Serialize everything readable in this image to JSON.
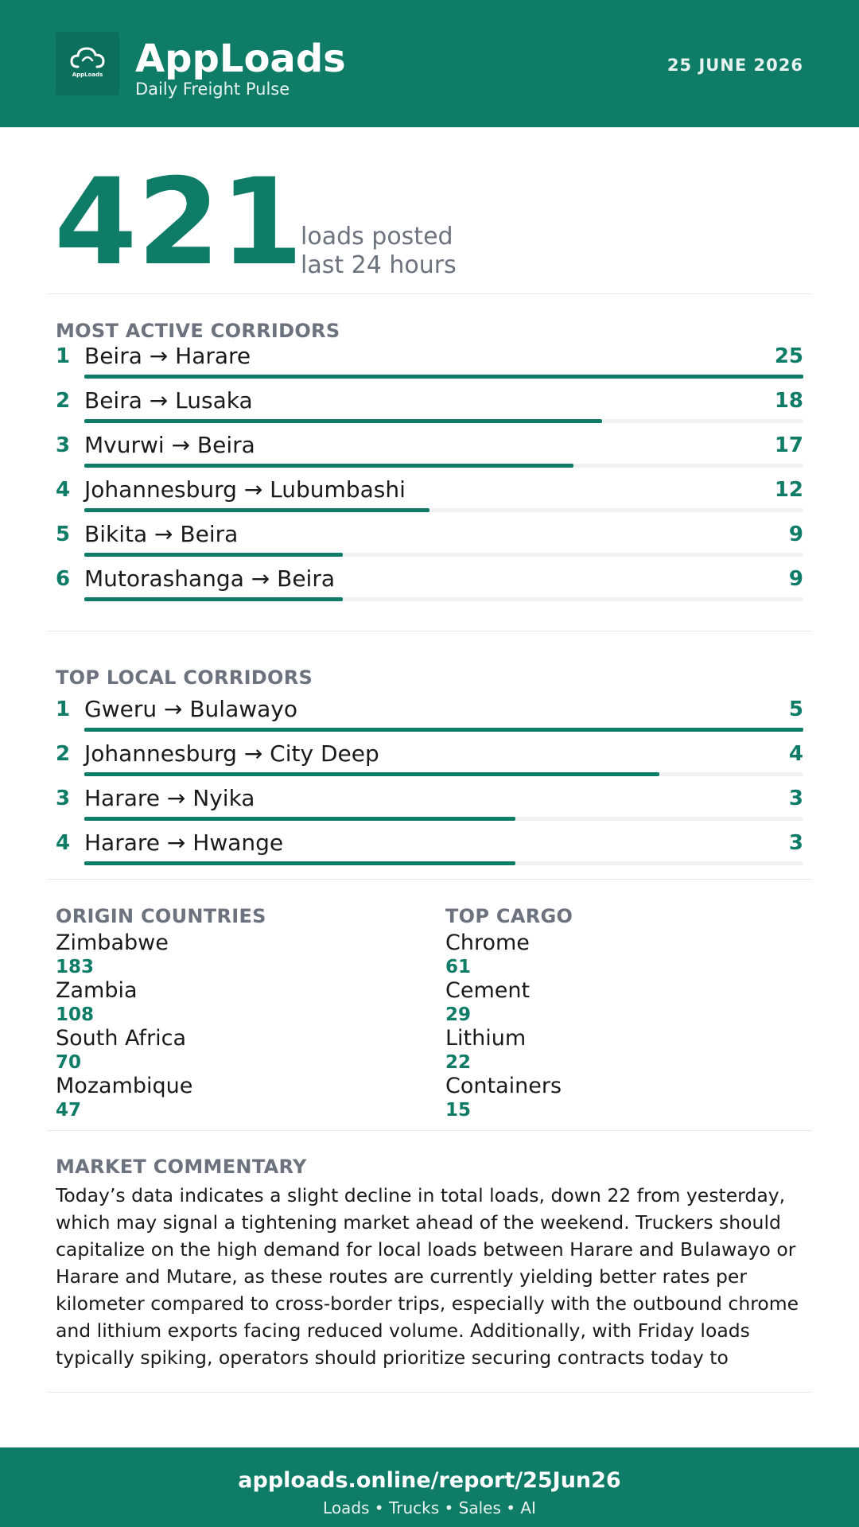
{
  "header": {
    "logo_text": "AppLoads",
    "brand_name": "AppLoads",
    "tagline": "Daily Freight Pulse",
    "date": "25 JUNE 2026"
  },
  "hero": {
    "value": "421",
    "label_line1": "loads posted",
    "label_line2": "last 24 hours"
  },
  "most_active": {
    "title": "MOST ACTIVE CORRIDORS",
    "max": 25,
    "rows": [
      {
        "rank": "1",
        "route": "Beira → Harare",
        "count": 25
      },
      {
        "rank": "2",
        "route": "Beira → Lusaka",
        "count": 18
      },
      {
        "rank": "3",
        "route": "Mvurwi → Beira",
        "count": 17
      },
      {
        "rank": "4",
        "route": "Johannesburg → Lubumbashi",
        "count": 12
      },
      {
        "rank": "5",
        "route": "Bikita → Beira",
        "count": 9
      },
      {
        "rank": "6",
        "route": "Mutorashanga → Beira",
        "count": 9
      }
    ]
  },
  "top_local": {
    "title": "TOP LOCAL CORRIDORS",
    "max": 5,
    "rows": [
      {
        "rank": "1",
        "route": "Gweru → Bulawayo",
        "count": 5
      },
      {
        "rank": "2",
        "route": "Johannesburg → City Deep",
        "count": 4
      },
      {
        "rank": "3",
        "route": "Harare → Nyika",
        "count": 3
      },
      {
        "rank": "4",
        "route": "Harare → Hwange",
        "count": 3
      }
    ]
  },
  "origin_countries": {
    "title": "ORIGIN COUNTRIES",
    "items": [
      {
        "name": "Zimbabwe",
        "value": "183"
      },
      {
        "name": "Zambia",
        "value": "108"
      },
      {
        "name": "South Africa",
        "value": "70"
      },
      {
        "name": "Mozambique",
        "value": "47"
      }
    ]
  },
  "top_cargo": {
    "title": "TOP CARGO",
    "items": [
      {
        "name": "Chrome",
        "value": "61"
      },
      {
        "name": "Cement",
        "value": "29"
      },
      {
        "name": "Lithium",
        "value": "22"
      },
      {
        "name": "Containers",
        "value": "15"
      }
    ]
  },
  "commentary": {
    "title": "MARKET COMMENTARY",
    "text": "Today’s data indicates a slight decline in total loads, down 22 from yesterday, which may signal a tightening market ahead of the weekend. Truckers should capitalize on the high demand for local loads between Harare and Bulawayo or Harare and Mutare, as these routes are currently yielding better rates per kilometer compared to cross-border trips, especially with the outbound chrome and lithium exports facing reduced volume. Additionally, with Friday loads typically spiking, operators should prioritize securing contracts today to"
  },
  "footer": {
    "url": "apploads.online/report/25Jun26",
    "tagline": "Loads • Trucks • Sales • AI"
  },
  "colors": {
    "brand": "#0e7c66",
    "muted": "#6c727e",
    "track": "#f1f2f4"
  }
}
